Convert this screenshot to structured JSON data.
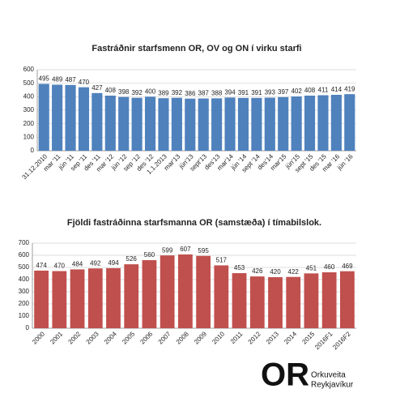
{
  "chart_data": [
    {
      "type": "bar",
      "title": "Fastráðnir starfsmenn OR, OV og ON í virku starfi",
      "categories": [
        "31.12.2010",
        "mar '11",
        "jún '11",
        "sep '11",
        "des '11",
        "mar '12",
        "jún '12",
        "sep '12",
        "des '12",
        "1.1.2013",
        "mar'13",
        "jún'13",
        "sept'13",
        "des'13",
        "mar'14",
        "jún '14",
        "sept '14",
        "des'14",
        "mar'15",
        "jún'15",
        "sept '15",
        "des '15",
        "mar '16",
        "jún '16"
      ],
      "values": [
        495,
        489,
        487,
        470,
        427,
        408,
        398,
        392,
        400,
        389,
        392,
        386,
        387,
        388,
        394,
        391,
        391,
        393,
        397,
        402,
        408,
        411,
        414,
        419
      ],
      "color": "#4f81bd",
      "ylim": [
        0,
        600
      ],
      "yticks": [
        0,
        100,
        200,
        300,
        400,
        500,
        600
      ],
      "grid": true
    },
    {
      "type": "bar",
      "title": "Fjöldi fastráðinna starfsmanna OR (samstæða) í tímabilslok.",
      "categories": [
        "2000",
        "2001",
        "2002",
        "2003",
        "2004",
        "2005",
        "2006",
        "2007",
        "2008",
        "2009",
        "2010",
        "2011",
        "2012",
        "2013",
        "2014",
        "2015",
        "2016F1",
        "2016F2"
      ],
      "values": [
        474,
        470,
        484,
        492,
        494,
        526,
        560,
        599,
        607,
        595,
        517,
        453,
        426,
        420,
        422,
        451,
        460,
        469
      ],
      "color": "#c0504d",
      "ylim": [
        0,
        700
      ],
      "yticks": [
        0,
        100,
        200,
        300,
        400,
        500,
        600,
        700
      ],
      "grid": true
    }
  ],
  "logo": {
    "mark": "OR",
    "name_line1": "Orkuveita",
    "name_line2": "Reykjavíkur"
  }
}
